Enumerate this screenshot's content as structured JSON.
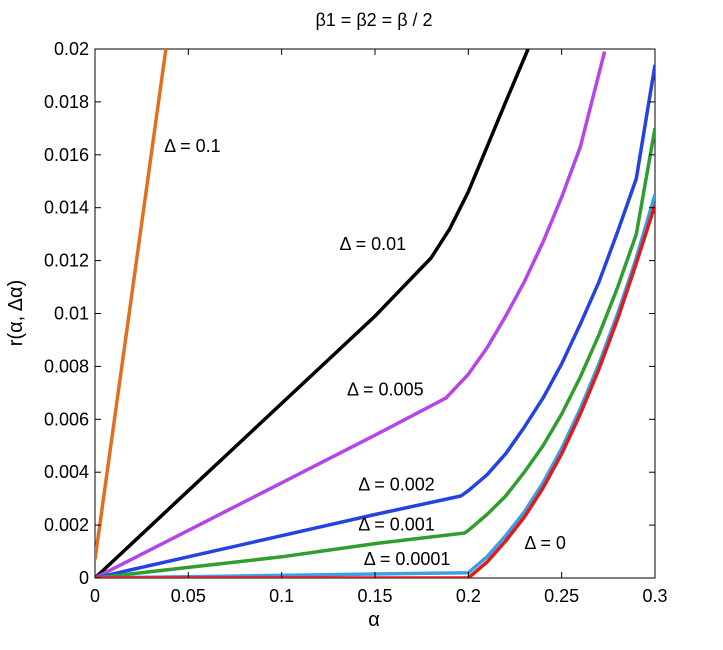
{
  "chart_data": {
    "type": "line",
    "title": "β1 = β2 = β / 2",
    "xlabel": "α",
    "ylabel": "r(α, Δα)",
    "xlim": [
      0,
      0.3
    ],
    "ylim": [
      0,
      0.02
    ],
    "x_ticks": [
      0,
      0.05,
      0.1,
      0.15,
      0.2,
      0.25,
      0.3
    ],
    "x_tick_labels": [
      "0",
      "0.05",
      "0.1",
      "0.15",
      "0.2",
      "0.25",
      "0.3"
    ],
    "y_ticks": [
      0,
      0.002,
      0.004,
      0.006,
      0.008,
      0.01,
      0.012,
      0.014,
      0.016,
      0.018,
      0.02
    ],
    "y_tick_labels": [
      "0",
      "0.002",
      "0.004",
      "0.006",
      "0.008",
      "0.01",
      "0.012",
      "0.014",
      "0.016",
      "0.018",
      "0.02"
    ],
    "grid": false,
    "legend": "none",
    "series": [
      {
        "color": "#e0701e",
        "x": [
          0,
          0.038
        ],
        "y": [
          0.0007,
          0.02
        ]
      },
      {
        "color": "#000000",
        "x": [
          0,
          0.05,
          0.1,
          0.15,
          0.18,
          0.19,
          0.2,
          0.21,
          0.22,
          0.232
        ],
        "y": [
          0,
          0.0033,
          0.0066,
          0.0099,
          0.0121,
          0.0132,
          0.0146,
          0.0163,
          0.018,
          0.02
        ]
      },
      {
        "color": "#b545e8",
        "x": [
          0,
          0.05,
          0.1,
          0.15,
          0.188,
          0.2,
          0.21,
          0.22,
          0.23,
          0.24,
          0.25,
          0.26,
          0.273
        ],
        "y": [
          0,
          0.0018,
          0.0036,
          0.0054,
          0.0068,
          0.0077,
          0.0087,
          0.0099,
          0.0112,
          0.0127,
          0.0144,
          0.0163,
          0.0199
        ]
      },
      {
        "color": "#2443e0",
        "x": [
          0,
          0.05,
          0.1,
          0.15,
          0.196,
          0.2,
          0.21,
          0.22,
          0.23,
          0.24,
          0.25,
          0.26,
          0.27,
          0.28,
          0.29,
          0.3
        ],
        "y": [
          0,
          0.0008,
          0.0016,
          0.0024,
          0.0031,
          0.0033,
          0.0039,
          0.0047,
          0.0057,
          0.0068,
          0.0081,
          0.0096,
          0.0112,
          0.0131,
          0.0151,
          0.0194
        ]
      },
      {
        "color": "#2f9e2f",
        "x": [
          0,
          0.05,
          0.1,
          0.15,
          0.198,
          0.2,
          0.21,
          0.22,
          0.23,
          0.24,
          0.25,
          0.26,
          0.27,
          0.28,
          0.29,
          0.3
        ],
        "y": [
          0,
          0.0004,
          0.0008,
          0.0013,
          0.0017,
          0.0018,
          0.0024,
          0.0031,
          0.004,
          0.005,
          0.0062,
          0.0076,
          0.0092,
          0.011,
          0.013,
          0.017
        ]
      },
      {
        "color": "#3aa0e6",
        "x": [
          0,
          0.05,
          0.1,
          0.15,
          0.2,
          0.21,
          0.22,
          0.23,
          0.24,
          0.25,
          0.26,
          0.27,
          0.28,
          0.29,
          0.3
        ],
        "y": [
          0,
          5e-05,
          0.0001,
          0.00015,
          0.0002,
          0.0008,
          0.0016,
          0.0025,
          0.0036,
          0.0049,
          0.0064,
          0.0081,
          0.01,
          0.0121,
          0.0145
        ]
      },
      {
        "color": "#e01b1b",
        "x": [
          0,
          0.05,
          0.1,
          0.15,
          0.2,
          0.21,
          0.22,
          0.23,
          0.24,
          0.25,
          0.26,
          0.27,
          0.28,
          0.29,
          0.3
        ],
        "y": [
          0,
          0,
          0,
          0,
          0,
          0.0006,
          0.0014,
          0.0023,
          0.0034,
          0.0047,
          0.0062,
          0.0079,
          0.0098,
          0.0119,
          0.0141
        ]
      }
    ],
    "annotations": [
      {
        "text": "Δ = 0.1",
        "x": 0.037,
        "y": 0.0161
      },
      {
        "text": "Δ = 0.01",
        "x": 0.131,
        "y": 0.0124
      },
      {
        "text": "Δ = 0.005",
        "x": 0.135,
        "y": 0.0069
      },
      {
        "text": "Δ = 0.002",
        "x": 0.141,
        "y": 0.0033
      },
      {
        "text": "Δ = 0.001",
        "x": 0.141,
        "y": 0.0018
      },
      {
        "text": "Δ = 0.0001",
        "x": 0.144,
        "y": 0.0005
      },
      {
        "text": "Δ = 0",
        "x": 0.23,
        "y": 0.0011
      }
    ]
  }
}
